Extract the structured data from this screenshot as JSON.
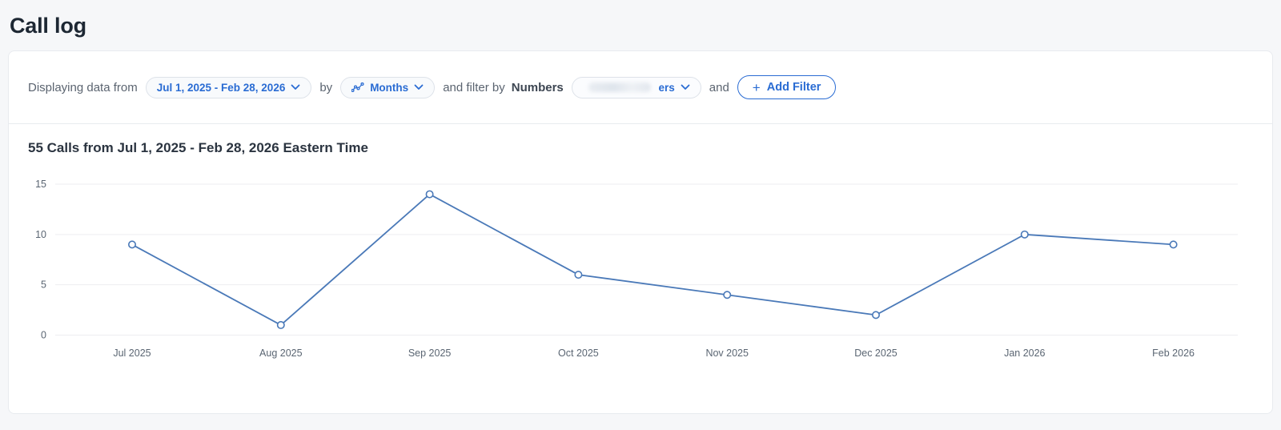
{
  "page": {
    "title": "Call log"
  },
  "filter_bar": {
    "displaying_label": "Displaying data from",
    "date_range_value": "Jul 1, 2025 - Feb 28, 2026",
    "by_label": "by",
    "group_by_value": "Months",
    "filter_by_label": "and filter by",
    "filter_field_name": "Numbers",
    "numbers_dropdown_visible_text": "ers",
    "and_label": "and",
    "add_filter_plus": "+",
    "add_filter_label": "Add Filter"
  },
  "chart_header": {
    "title": "55 Calls from Jul 1, 2025 - Feb 28, 2026 Eastern Time"
  },
  "chart_data": {
    "type": "line",
    "title": "55 Calls from Jul 1, 2025 - Feb 28, 2026 Eastern Time",
    "categories": [
      "Jul 2025",
      "Aug 2025",
      "Sep 2025",
      "Oct 2025",
      "Nov 2025",
      "Dec 2025",
      "Jan 2026",
      "Feb 2026"
    ],
    "values": [
      9,
      1,
      14,
      6,
      4,
      2,
      10,
      9
    ],
    "total_calls": 55,
    "timezone": "Eastern Time",
    "xlabel": "",
    "ylabel": "",
    "ylim": [
      0,
      15
    ],
    "yticks": [
      0,
      5,
      10,
      15
    ],
    "grid": true,
    "legend": "none",
    "marker": "open-circle"
  },
  "colors": {
    "accent_blue": "#2a6cd3",
    "line_blue": "#4a79b8",
    "page_bg": "#f6f7f9",
    "card_bg": "#ffffff",
    "grid_line": "#ededf0",
    "axis_text": "#5a6572"
  }
}
